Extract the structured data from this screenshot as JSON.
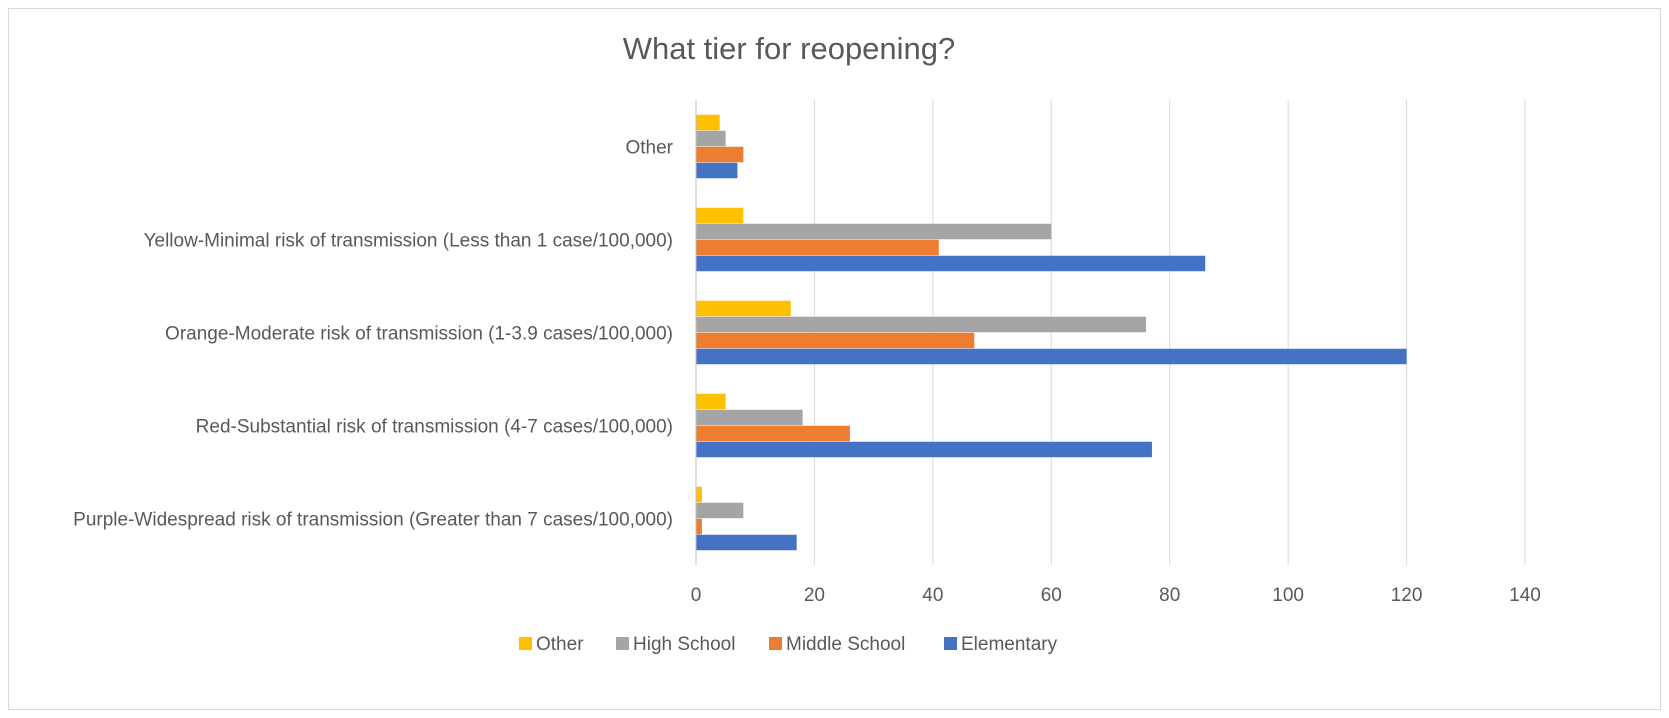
{
  "chart_data": {
    "type": "bar",
    "orientation": "horizontal",
    "title": "What tier for reopening?",
    "xlabel": "",
    "ylabel": "",
    "xlim": [
      0,
      140
    ],
    "xticks": [
      "0",
      "20",
      "40",
      "60",
      "80",
      "100",
      "120",
      "140"
    ],
    "grid": true,
    "legend_position": "bottom",
    "categories": [
      "Other",
      "Yellow-Minimal risk of transmission (Less than 1 case/100,000)",
      "Orange-Moderate risk of transmission (1-3.9 cases/100,000)",
      "Red-Substantial risk of transmission (4-7 cases/100,000)",
      "Purple-Widespread risk of transmission (Greater than 7 cases/100,000)"
    ],
    "series": [
      {
        "name": "Other",
        "color": "#ffc000",
        "values": [
          4,
          8,
          16,
          5,
          1
        ]
      },
      {
        "name": "High School",
        "color": "#a5a5a5",
        "values": [
          5,
          60,
          76,
          18,
          8
        ]
      },
      {
        "name": "Middle School",
        "color": "#ed7d31",
        "values": [
          8,
          41,
          47,
          26,
          1
        ]
      },
      {
        "name": "Elementary",
        "color": "#4472c4",
        "values": [
          7,
          86,
          120,
          77,
          17
        ]
      }
    ]
  }
}
